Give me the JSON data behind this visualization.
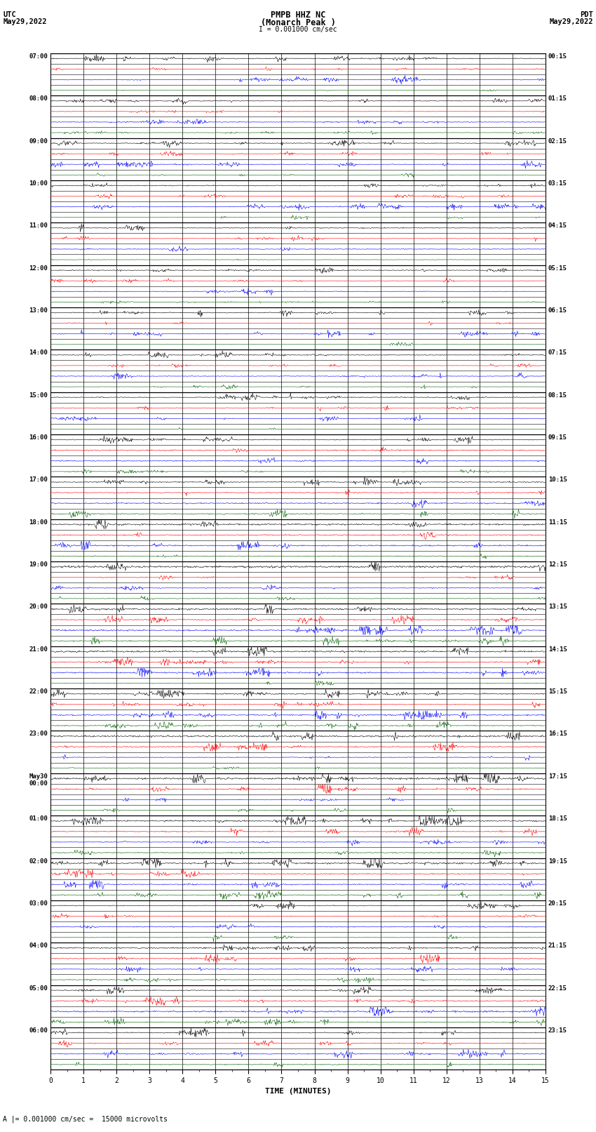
{
  "title_line1": "PMPB HHZ NC",
  "title_line2": "(Monarch Peak )",
  "scale_label": "I = 0.001000 cm/sec",
  "bottom_label": "A |= 0.001000 cm/sec =  15000 microvolts",
  "xlabel": "TIME (MINUTES)",
  "left_header": "UTC",
  "left_header2": "May29,2022",
  "right_header": "PDT",
  "right_header2": "May29,2022",
  "bg_color": "#ffffff",
  "trace_colors": [
    "#000000",
    "#ff0000",
    "#0000ff",
    "#006400"
  ],
  "utc_labels": [
    "07:00",
    "",
    "",
    "",
    "08:00",
    "",
    "",
    "",
    "09:00",
    "",
    "",
    "",
    "10:00",
    "",
    "",
    "",
    "11:00",
    "",
    "",
    "",
    "12:00",
    "",
    "",
    "",
    "13:00",
    "",
    "",
    "",
    "14:00",
    "",
    "",
    "",
    "15:00",
    "",
    "",
    "",
    "16:00",
    "",
    "",
    "",
    "17:00",
    "",
    "",
    "",
    "18:00",
    "",
    "",
    "",
    "19:00",
    "",
    "",
    "",
    "20:00",
    "",
    "",
    "",
    "21:00",
    "",
    "",
    "",
    "22:00",
    "",
    "",
    "",
    "23:00",
    "",
    "",
    "",
    "May30\n00:00",
    "",
    "",
    "",
    "01:00",
    "",
    "",
    "",
    "02:00",
    "",
    "",
    "",
    "03:00",
    "",
    "",
    "",
    "04:00",
    "",
    "",
    "",
    "05:00",
    "",
    "",
    "",
    "06:00",
    "",
    "",
    ""
  ],
  "pdt_labels": [
    "00:15",
    "",
    "",
    "",
    "01:15",
    "",
    "",
    "",
    "02:15",
    "",
    "",
    "",
    "03:15",
    "",
    "",
    "",
    "04:15",
    "",
    "",
    "",
    "05:15",
    "",
    "",
    "",
    "06:15",
    "",
    "",
    "",
    "07:15",
    "",
    "",
    "",
    "08:15",
    "",
    "",
    "",
    "09:15",
    "",
    "",
    "",
    "10:15",
    "",
    "",
    "",
    "11:15",
    "",
    "",
    "",
    "12:15",
    "",
    "",
    "",
    "13:15",
    "",
    "",
    "",
    "14:15",
    "",
    "",
    "",
    "15:15",
    "",
    "",
    "",
    "16:15",
    "",
    "",
    "",
    "17:15",
    "",
    "",
    "",
    "18:15",
    "",
    "",
    "",
    "19:15",
    "",
    "",
    "",
    "20:15",
    "",
    "",
    "",
    "21:15",
    "",
    "",
    "",
    "22:15",
    "",
    "",
    "",
    "23:15",
    "",
    "",
    ""
  ],
  "n_points": 900,
  "amp_base": 0.06,
  "amp_scale_factors": [
    1.0,
    0.6,
    0.8,
    0.5
  ]
}
